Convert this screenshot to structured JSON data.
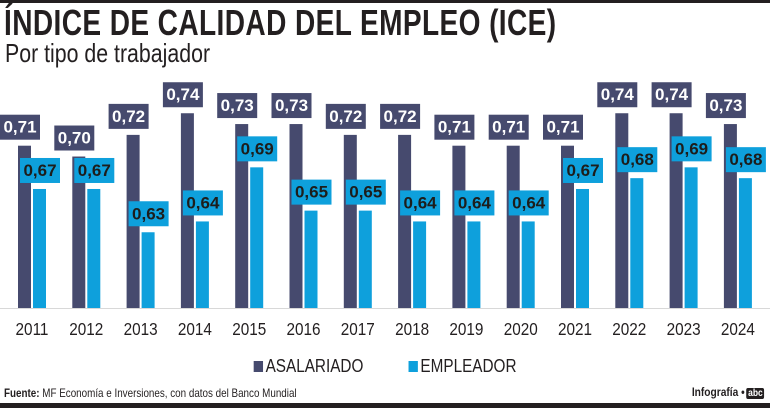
{
  "title": "ÍNDICE DE CALIDAD DEL EMPLEO (ICE)",
  "subtitle": "Por tipo de trabajador",
  "source_label": "Fuente:",
  "source_text": "MF Economía e Inversiones, con datos del Banco Mundial",
  "credit": "Infografía •",
  "logo_text": "abc",
  "colors": {
    "asalariado": "#464a6e",
    "empleador": "#0ea0dc"
  },
  "chart_data": {
    "type": "bar",
    "title": "ÍNDICE DE CALIDAD DEL EMPLEO (ICE)",
    "subtitle": "Por tipo de trabajador",
    "categories": [
      "2011",
      "2012",
      "2013",
      "2014",
      "2015",
      "2016",
      "2017",
      "2018",
      "2019",
      "2020",
      "2021",
      "2022",
      "2023",
      "2024"
    ],
    "series": [
      {
        "name": "ASALARIADO",
        "values": [
          0.71,
          0.7,
          0.72,
          0.74,
          0.73,
          0.73,
          0.72,
          0.72,
          0.71,
          0.71,
          0.71,
          0.74,
          0.74,
          0.73
        ],
        "labels": [
          "0,71",
          "0,70",
          "0,72",
          "0,74",
          "0,73",
          "0,73",
          "0,72",
          "0,72",
          "0,71",
          "0,71",
          "0,71",
          "0,74",
          "0,74",
          "0,73"
        ]
      },
      {
        "name": "EMPLEADOR",
        "values": [
          0.67,
          0.67,
          0.63,
          0.64,
          0.69,
          0.65,
          0.65,
          0.64,
          0.64,
          0.64,
          0.67,
          0.68,
          0.69,
          0.68
        ],
        "labels": [
          "0,67",
          "0,67",
          "0,63",
          "0,64",
          "0,69",
          "0,65",
          "0,65",
          "0,64",
          "0,64",
          "0,64",
          "0,67",
          "0,68",
          "0,69",
          "0,68"
        ]
      }
    ],
    "legend": "bottom",
    "grid": false,
    "ylim": [
      0.56,
      0.75
    ]
  }
}
